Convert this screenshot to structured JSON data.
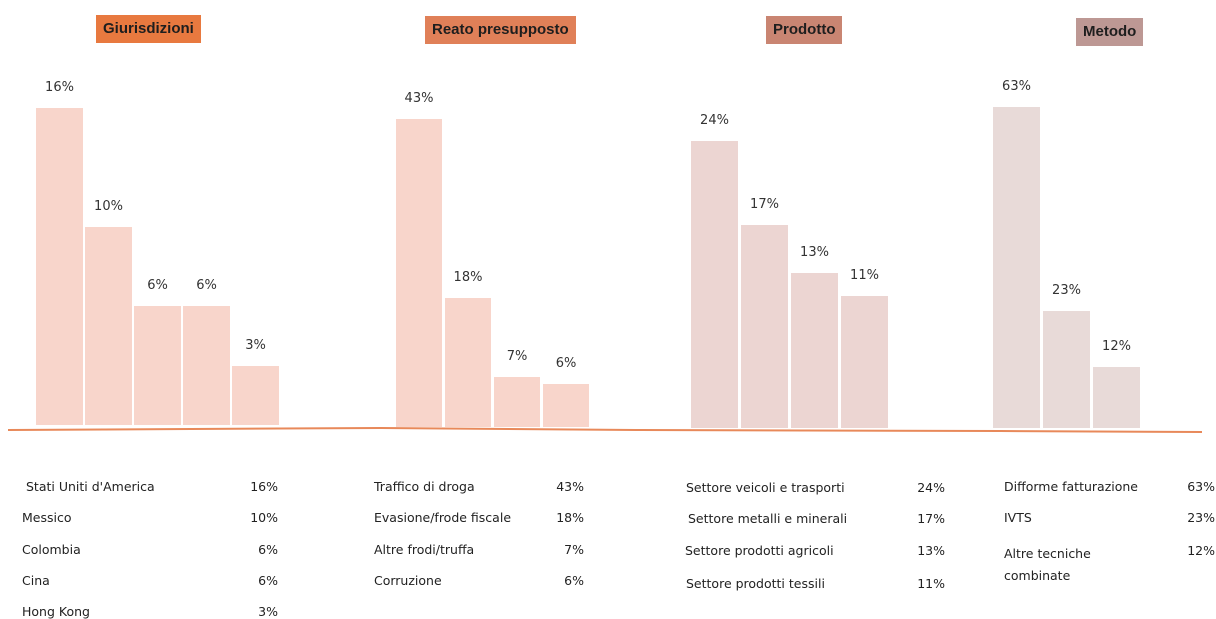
{
  "colors": {
    "axis_line": "#e8895a",
    "header_1": "#e8793f",
    "header_2": "#e08058",
    "header_3": "#c98572",
    "header_4": "#bd9894",
    "bars_1": "#f8d5cb",
    "bars_2": "#f8d5cb",
    "bars_3": "#ecd5d2",
    "bars_4": "#e8dad8"
  },
  "chart_data": [
    {
      "type": "bar",
      "title": "Giurisdizioni",
      "categories": [
        "Stati Uniti d'America",
        "Messico",
        "Colombia",
        "Cina",
        "Hong Kong"
      ],
      "values": [
        16,
        10,
        6,
        6,
        3
      ],
      "labels": [
        "16%",
        "10%",
        "6%",
        "6%",
        "3%"
      ],
      "ylim": [
        0,
        16
      ]
    },
    {
      "type": "bar",
      "title": "Reato presupposto",
      "categories": [
        "Traffico di droga",
        "Evasione/frode fiscale",
        "Altre frodi/truffa",
        "Corruzione"
      ],
      "values": [
        43,
        18,
        7,
        6
      ],
      "labels": [
        "43%",
        "18%",
        "7%",
        "6%"
      ],
      "ylim": [
        0,
        47
      ]
    },
    {
      "type": "bar",
      "title": "Prodotto",
      "categories": [
        "Settore veicoli e trasporti",
        "Settore metalli e minerali",
        "Settore prodotti agricoli",
        "Settore prodotti tessili"
      ],
      "values": [
        24,
        17,
        13,
        11
      ],
      "labels": [
        "24%",
        "17%",
        "13%",
        "11%"
      ],
      "ylim": [
        0,
        33
      ]
    },
    {
      "type": "bar",
      "title": "Metodo",
      "categories": [
        "Difforme fatturazione",
        "IVTS",
        "Altre tecniche combinate"
      ],
      "values": [
        63,
        23,
        12
      ],
      "labels": [
        "63%",
        "23%",
        "12%"
      ],
      "ylim": [
        0,
        63
      ]
    }
  ]
}
